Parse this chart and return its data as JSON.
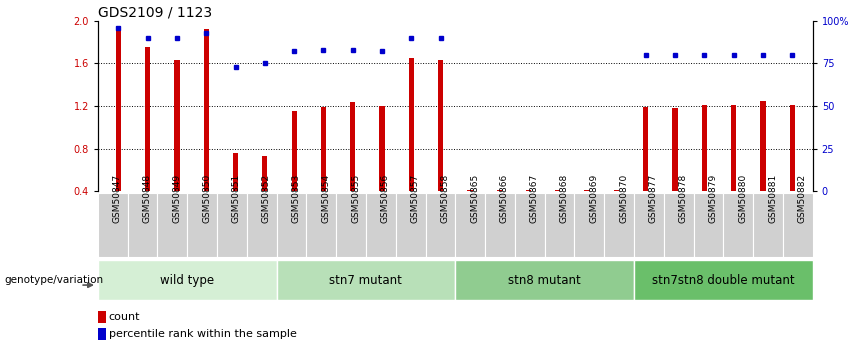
{
  "title": "GDS2109 / 1123",
  "samples": [
    "GSM50847",
    "GSM50848",
    "GSM50849",
    "GSM50850",
    "GSM50851",
    "GSM50852",
    "GSM50853",
    "GSM50854",
    "GSM50855",
    "GSM50856",
    "GSM50857",
    "GSM50858",
    "GSM50865",
    "GSM50866",
    "GSM50867",
    "GSM50868",
    "GSM50869",
    "GSM50870",
    "GSM50877",
    "GSM50878",
    "GSM50879",
    "GSM50880",
    "GSM50881",
    "GSM50882"
  ],
  "bar_values": [
    1.95,
    1.75,
    1.63,
    1.92,
    0.76,
    0.73,
    1.15,
    1.19,
    1.24,
    1.2,
    1.65,
    1.63,
    0.41,
    0.41,
    0.41,
    0.41,
    0.41,
    0.41,
    1.19,
    1.18,
    1.21,
    1.21,
    1.25,
    1.21
  ],
  "dot_values": [
    96,
    90,
    90,
    93,
    73,
    75,
    82,
    83,
    83,
    82,
    90,
    90,
    null,
    null,
    null,
    null,
    null,
    null,
    80,
    80,
    80,
    80,
    80,
    80
  ],
  "groups": [
    {
      "label": "wild type",
      "start": 0,
      "end": 5,
      "color": "#d5efd5"
    },
    {
      "label": "stn7 mutant",
      "start": 6,
      "end": 11,
      "color": "#b8e0b8"
    },
    {
      "label": "stn8 mutant",
      "start": 12,
      "end": 17,
      "color": "#90cc90"
    },
    {
      "label": "stn7stn8 double mutant",
      "start": 18,
      "end": 23,
      "color": "#6abf6a"
    }
  ],
  "bar_color": "#cc0000",
  "dot_color": "#0000cc",
  "ylim_left": [
    0.4,
    2.0
  ],
  "ylim_right": [
    0,
    100
  ],
  "yticks_left": [
    0.4,
    0.8,
    1.2,
    1.6,
    2.0
  ],
  "yticks_right": [
    0,
    25,
    50,
    75,
    100
  ],
  "ytick_labels_right": [
    "0",
    "25",
    "50",
    "75",
    "100%"
  ],
  "grid_values": [
    0.8,
    1.2,
    1.6
  ],
  "title_fontsize": 10,
  "tick_fontsize": 7,
  "sample_fontsize": 6.5,
  "group_fontsize": 8.5,
  "legend_fontsize": 8,
  "genotype_label": "genotype/variation",
  "legend_count": "count",
  "legend_percentile": "percentile rank within the sample",
  "bg_color": "#ffffff",
  "sample_cell_color": "#d0d0d0",
  "bar_width": 0.18
}
